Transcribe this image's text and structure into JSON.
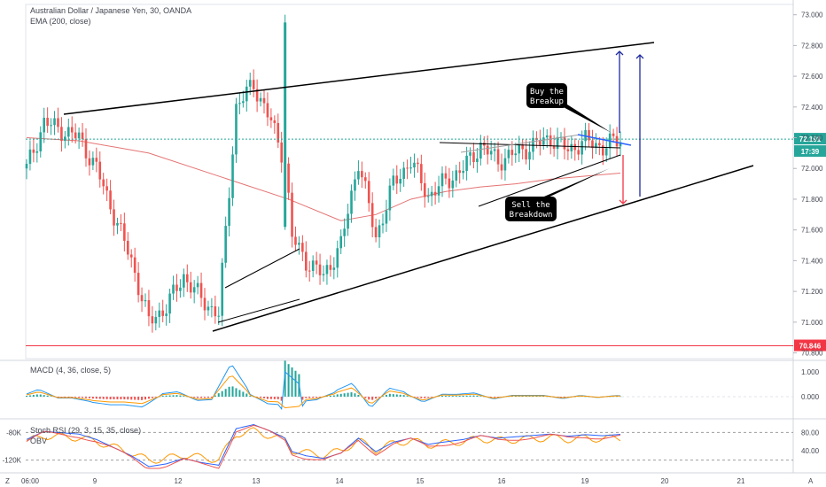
{
  "header": {
    "title": "Australian Dollar / Japanese Yen, 30, OANDA",
    "indicator": "EMA (200, close)"
  },
  "macd_pane": {
    "label": "MACD (4, 36, close, 5)"
  },
  "stoch_pane": {
    "label": "Stoch RSI (29, 3, 15, 35, close)",
    "obv_label": "OBV"
  },
  "annotations": {
    "buy": [
      "Buy the",
      "Breakup"
    ],
    "sell": [
      "Sell the",
      "Breakdown"
    ]
  },
  "price_tags": {
    "current": "72.191",
    "countdown": "17:39",
    "support": "70.846"
  },
  "colors": {
    "up": "#26a69a",
    "down": "#ef5350",
    "ema": "#e57373",
    "support": "#f23645",
    "stoch_k": "#2962ff",
    "stoch_d": "#ef5350",
    "obv": "#ff9800"
  },
  "chart_data": {
    "type": "line",
    "symbol": "AUDJPY",
    "timeframe": "30",
    "main_axis": {
      "ticks": [
        "73.000",
        "72.800",
        "72.600",
        "72.400",
        "72.200",
        "72.000",
        "71.800",
        "71.600",
        "71.400",
        "71.200",
        "71.000",
        "70.800"
      ],
      "ylim": [
        70.78,
        73.05
      ]
    },
    "x_axis": {
      "ticks": [
        "06:00",
        "9",
        "12",
        "13",
        "14",
        "15",
        "16",
        "19",
        "20",
        "21"
      ]
    },
    "series": [
      {
        "name": "EMA (200, close)",
        "x_index": [
          0,
          15,
          35,
          55,
          75,
          90,
          100,
          110,
          120,
          130,
          140,
          150,
          160,
          170
        ],
        "values": [
          72.2,
          72.18,
          72.1,
          71.95,
          71.8,
          71.66,
          71.7,
          71.8,
          71.85,
          71.88,
          71.9,
          71.93,
          71.95,
          71.97
        ]
      },
      {
        "name": "price",
        "x_index": [
          0,
          5,
          10,
          15,
          20,
          25,
          30,
          35,
          40,
          45,
          50,
          55,
          60,
          65,
          70,
          74,
          76,
          80,
          85,
          90,
          95,
          100,
          105,
          110,
          115,
          118,
          125,
          130,
          135,
          140,
          145,
          150,
          155,
          160,
          165,
          170
        ],
        "values": [
          72.0,
          72.3,
          72.25,
          72.2,
          72.0,
          71.7,
          71.4,
          71.0,
          71.1,
          71.3,
          71.15,
          71.05,
          72.4,
          72.55,
          72.3,
          72.05,
          71.55,
          71.4,
          71.3,
          71.5,
          72.05,
          71.55,
          71.9,
          72.05,
          71.82,
          71.88,
          72.0,
          72.15,
          72.05,
          72.1,
          72.15,
          72.2,
          72.12,
          72.18,
          72.14,
          72.19
        ]
      }
    ],
    "horizontal_levels": [
      {
        "value": 72.191,
        "label": "72.191"
      },
      {
        "value": 70.846,
        "label": "70.846"
      }
    ],
    "macd": {
      "ticks": [
        "1.000",
        "0.000"
      ]
    },
    "stoch_rsi": {
      "ticks": [
        "80.00",
        "40.00"
      ],
      "obv_ticks": [
        "-80K",
        "-120K"
      ]
    }
  }
}
